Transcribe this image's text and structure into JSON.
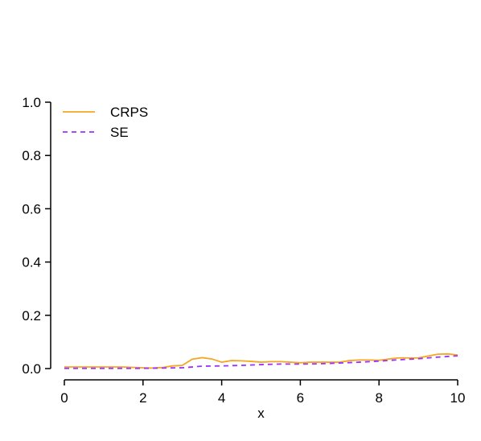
{
  "chart_data": {
    "type": "line",
    "title": "",
    "xlabel": "x",
    "ylabel": "",
    "xlim": [
      0,
      10
    ],
    "ylim": [
      0,
      1
    ],
    "x_ticks": [
      "0",
      "2",
      "4",
      "6",
      "8",
      "10"
    ],
    "y_ticks": [
      "0.0",
      "0.2",
      "0.4",
      "0.6",
      "0.8",
      "1.0"
    ],
    "grid": false,
    "legend_position": "top-left",
    "series": [
      {
        "name": "CRPS",
        "color": "#f5a623",
        "dash": "solid",
        "x": [
          0,
          0.5,
          1.0,
          1.5,
          2.0,
          2.2,
          2.5,
          2.75,
          3.0,
          3.25,
          3.5,
          3.75,
          4.0,
          4.25,
          4.5,
          4.75,
          5.0,
          5.25,
          5.5,
          5.75,
          6.0,
          6.25,
          6.5,
          6.75,
          7.0,
          7.25,
          7.5,
          7.75,
          8.0,
          8.25,
          8.5,
          8.75,
          9.0,
          9.25,
          9.5,
          9.75,
          10.0
        ],
        "y": [
          0.006,
          0.006,
          0.006,
          0.006,
          0.003,
          0.002,
          0.004,
          0.01,
          0.012,
          0.035,
          0.041,
          0.036,
          0.024,
          0.03,
          0.029,
          0.027,
          0.024,
          0.026,
          0.026,
          0.024,
          0.022,
          0.024,
          0.024,
          0.024,
          0.024,
          0.03,
          0.032,
          0.032,
          0.031,
          0.036,
          0.04,
          0.04,
          0.04,
          0.047,
          0.054,
          0.055,
          0.051
        ]
      },
      {
        "name": "SE",
        "color": "#9b30ff",
        "dash": "dashed",
        "x": [
          0,
          0.5,
          1.0,
          1.5,
          2.0,
          2.5,
          3.0,
          3.5,
          4.0,
          4.5,
          5.0,
          5.5,
          6.0,
          6.5,
          7.0,
          7.5,
          8.0,
          8.5,
          9.0,
          9.5,
          10.0
        ],
        "y": [
          0.001,
          0.001,
          0.001,
          0.001,
          0.001,
          0.002,
          0.003,
          0.009,
          0.01,
          0.012,
          0.015,
          0.017,
          0.017,
          0.018,
          0.021,
          0.024,
          0.028,
          0.033,
          0.037,
          0.043,
          0.048
        ]
      }
    ]
  }
}
